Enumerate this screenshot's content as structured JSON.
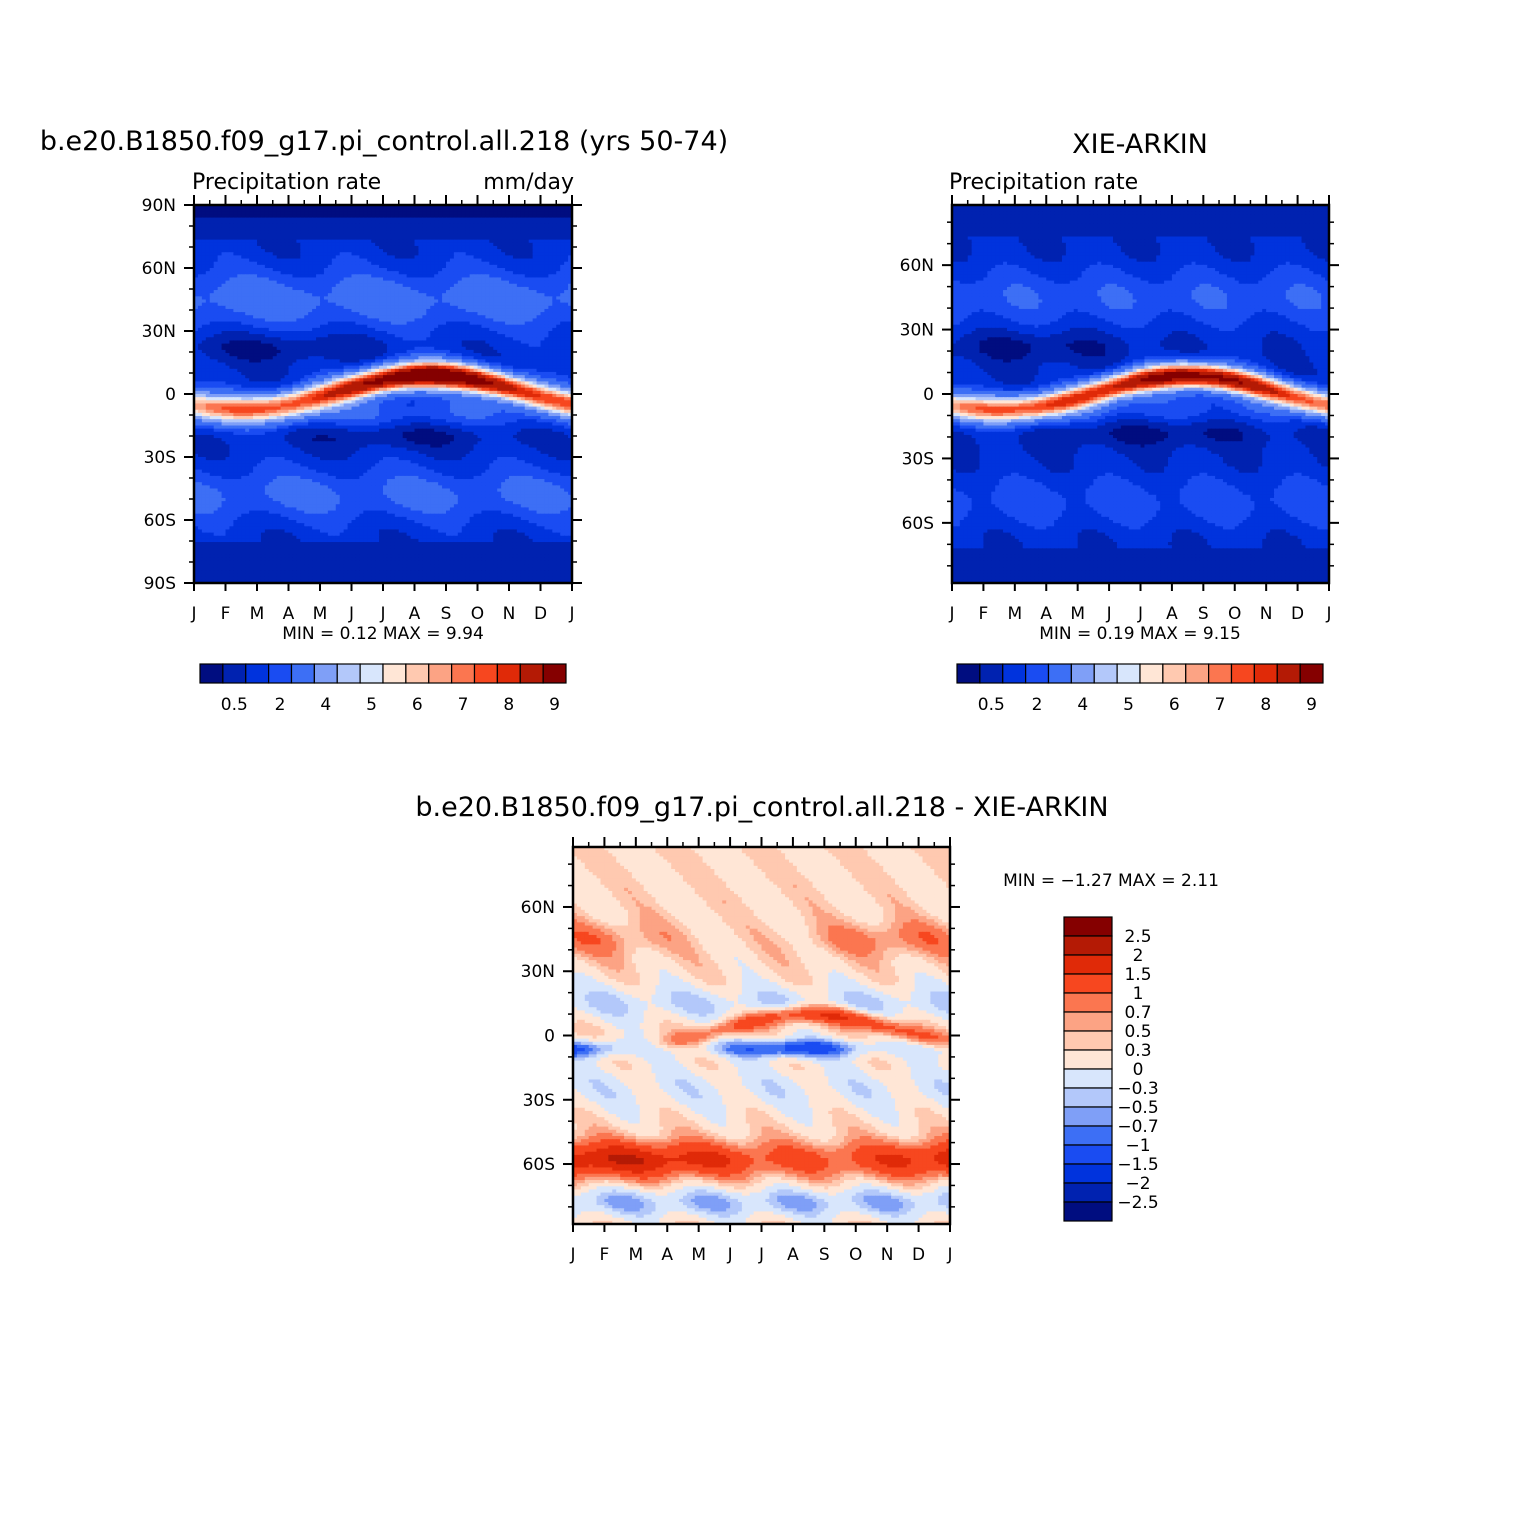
{
  "chart_data": [
    {
      "type": "heatmap",
      "title": "b.e20.B1850.f09_g17.pi_control.all.218 (yrs 50-74)",
      "subtitle_left": "Precipitation rate",
      "subtitle_right": "mm/day",
      "x_ticks": [
        "J",
        "F",
        "M",
        "A",
        "M",
        "J",
        "J",
        "A",
        "S",
        "O",
        "N",
        "D",
        "J"
      ],
      "y_ticks": [
        "90N",
        "60N",
        "30N",
        "0",
        "30S",
        "60S",
        "90S"
      ],
      "y_tick_values": [
        90,
        60,
        30,
        0,
        -30,
        -60,
        -90
      ],
      "ylim": [
        -90,
        90
      ],
      "xlim": [
        0,
        12
      ],
      "stats_label": "MIN =     0.12  MAX =     9.94",
      "colorbar_labels": [
        "0.5",
        "2",
        "4",
        "5",
        "6",
        "7",
        "8",
        "9"
      ],
      "colorbar_label_positions": [
        1.5,
        3.5,
        5.5,
        7.5,
        9.5,
        11.5,
        13.5,
        15.5
      ],
      "itcz_peak_mm_day": 9.94,
      "itcz_peak_month": 7.5,
      "itcz_peak_lat": 8
    },
    {
      "type": "heatmap",
      "title": "XIE-ARKIN",
      "subtitle_left": "Precipitation rate",
      "subtitle_right": "",
      "x_ticks": [
        "J",
        "F",
        "M",
        "A",
        "M",
        "J",
        "J",
        "A",
        "S",
        "O",
        "N",
        "D",
        "J"
      ],
      "y_ticks": [
        "60N",
        "30N",
        "0",
        "30S",
        "60S"
      ],
      "y_tick_values": [
        60,
        30,
        0,
        -30,
        -60
      ],
      "ylim": [
        -88,
        88
      ],
      "xlim": [
        0,
        12
      ],
      "stats_label": "MIN =     0.19  MAX =     9.15",
      "colorbar_labels": [
        "0.5",
        "2",
        "4",
        "5",
        "6",
        "7",
        "8",
        "9"
      ],
      "colorbar_label_positions": [
        1.5,
        3.5,
        5.5,
        7.5,
        9.5,
        11.5,
        13.5,
        15.5
      ],
      "itcz_peak_mm_day": 9.15,
      "itcz_peak_month": 7.5,
      "itcz_peak_lat": 7
    },
    {
      "type": "heatmap",
      "title": "b.e20.B1850.f09_g17.pi_control.all.218 - XIE-ARKIN",
      "x_ticks": [
        "J",
        "F",
        "M",
        "A",
        "M",
        "J",
        "J",
        "A",
        "S",
        "O",
        "N",
        "D",
        "J"
      ],
      "y_ticks": [
        "60N",
        "30N",
        "0",
        "30S",
        "60S"
      ],
      "y_tick_values": [
        60,
        30,
        0,
        -30,
        -60
      ],
      "ylim": [
        -88,
        88
      ],
      "xlim": [
        0,
        12
      ],
      "stats_label": "MIN =   −1.27  MAX =     2.11",
      "colorbar_labels": [
        "2.5",
        "2",
        "1.5",
        "1",
        "0.7",
        "0.5",
        "0.3",
        "0",
        "−0.3",
        "−0.5",
        "−0.7",
        "−1",
        "−1.5",
        "−2",
        "−2.5"
      ],
      "levels": [
        2.5,
        2,
        1.5,
        1,
        0.7,
        0.5,
        0.3,
        0,
        -0.3,
        -0.5,
        -0.7,
        -1,
        -1.5,
        -2,
        -2.5
      ]
    }
  ],
  "colors": {
    "precip_scale": [
      "#000d80",
      "#0022b0",
      "#0033dd",
      "#1a4cf2",
      "#3d6ff5",
      "#7f9ff7",
      "#b3c8fa",
      "#d8e6fc",
      "#ffe6d6",
      "#ffc9b0",
      "#fca384",
      "#fb7650",
      "#f7471f",
      "#e02a08",
      "#b41a05",
      "#850000"
    ],
    "diff_scale": [
      "#850000",
      "#b41a05",
      "#e02a08",
      "#f7471f",
      "#fb7650",
      "#fca384",
      "#ffc9b0",
      "#ffe6d6",
      "#d8e6fc",
      "#b3c8fa",
      "#7f9ff7",
      "#3d6ff5",
      "#1a4cf2",
      "#0033dd",
      "#0022b0",
      "#000d80"
    ]
  }
}
